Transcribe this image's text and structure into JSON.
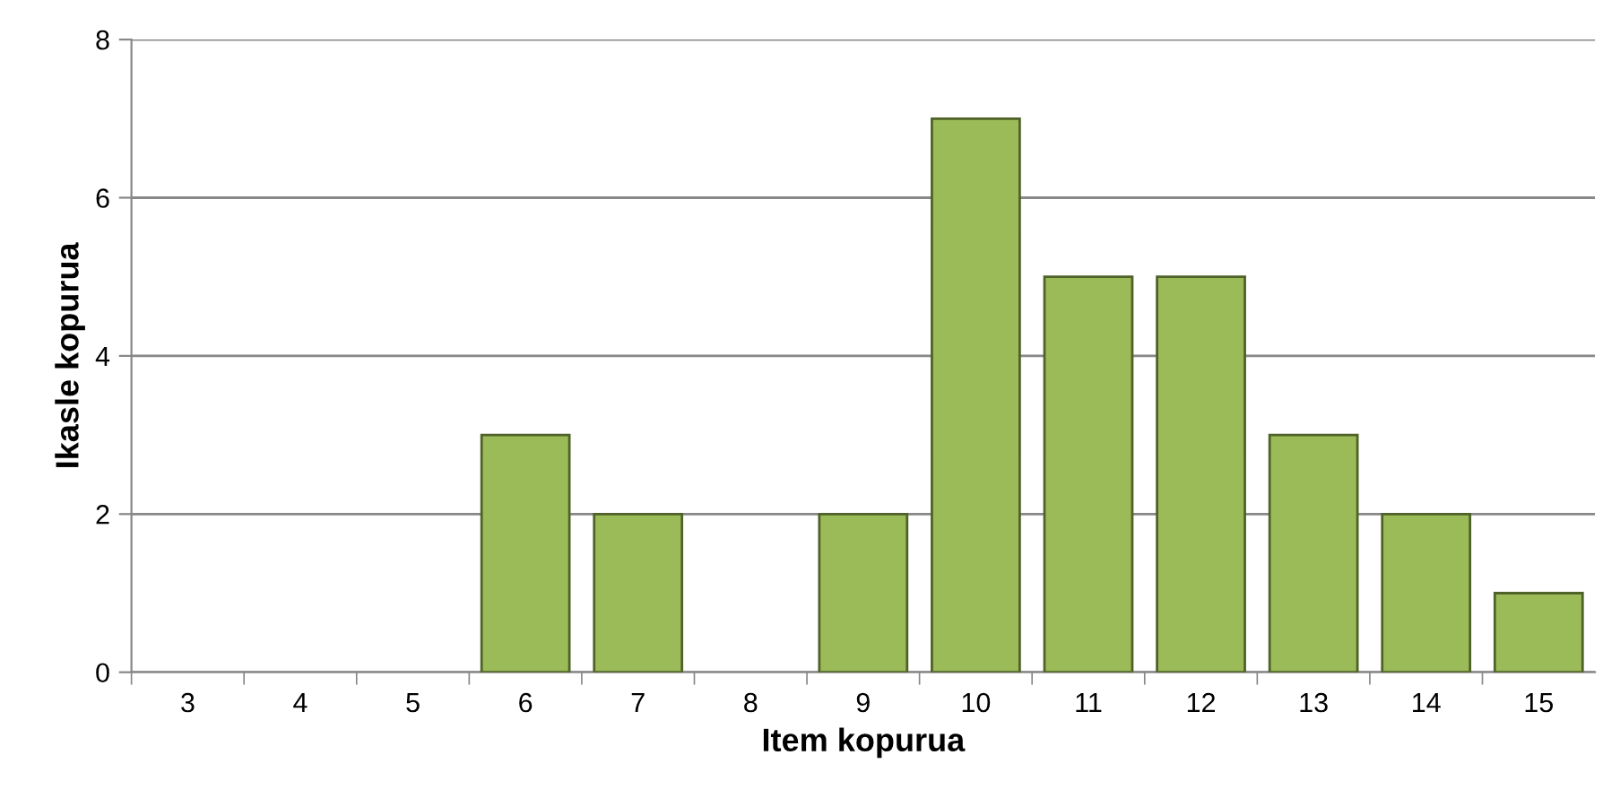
{
  "chart_data": {
    "type": "bar",
    "xlabel": "Item kopurua",
    "ylabel": "Ikasle kopurua",
    "categories": [
      "3",
      "4",
      "5",
      "6",
      "7",
      "8",
      "9",
      "10",
      "11",
      "12",
      "13",
      "14",
      "15"
    ],
    "values": [
      0,
      0,
      0,
      3,
      2,
      0,
      2,
      7,
      5,
      5,
      3,
      2,
      1
    ],
    "color": "#9bbb59",
    "ylim": [
      0,
      8
    ],
    "yticks": [
      0,
      2,
      4,
      6,
      8
    ],
    "grid": "y",
    "legend": false
  }
}
